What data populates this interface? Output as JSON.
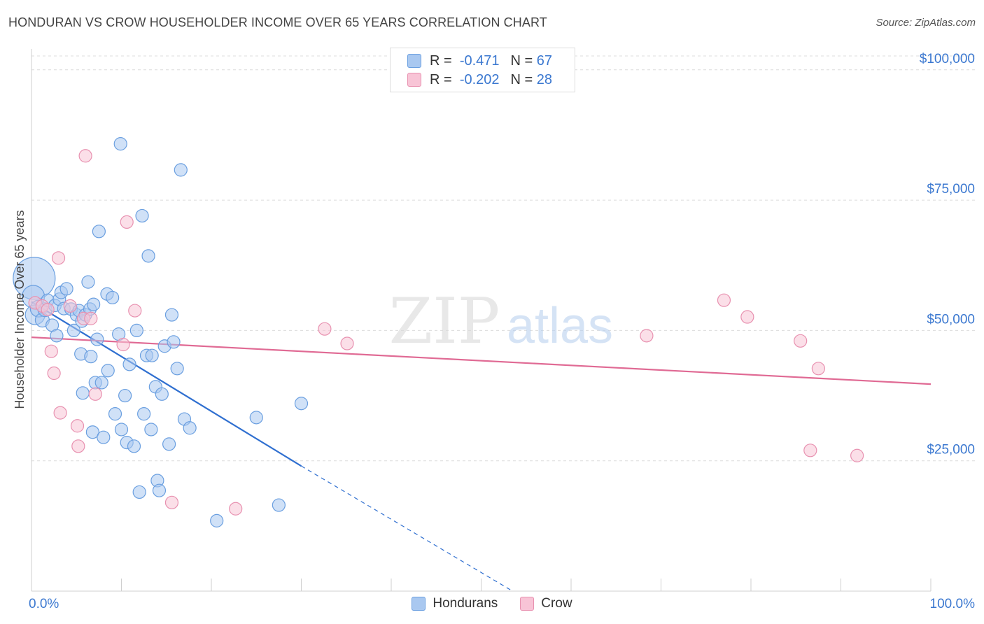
{
  "title": "HONDURAN VS CROW HOUSEHOLDER INCOME OVER 65 YEARS CORRELATION CHART",
  "source": "Source: ZipAtlas.com",
  "watermark": {
    "zip": "ZIP",
    "atlas": "atlas"
  },
  "legend": {
    "rows": [
      {
        "r_label": "R =",
        "r_value": "-0.471",
        "n_label": "N =",
        "n_value": "67",
        "color": "#a9c8f0",
        "border": "#6a9fe0"
      },
      {
        "r_label": "R =",
        "r_value": "-0.202",
        "n_label": "N =",
        "n_value": "28",
        "color": "#f8c4d6",
        "border": "#e891b0"
      }
    ]
  },
  "bottom_legend": [
    {
      "label": "Hondurans",
      "color": "#a9c8f0",
      "border": "#6a9fe0"
    },
    {
      "label": "Crow",
      "color": "#f8c4d6",
      "border": "#e891b0"
    }
  ],
  "chart_data": {
    "type": "scatter",
    "title": "HONDURAN VS CROW HOUSEHOLDER INCOME OVER 65 YEARS CORRELATION CHART",
    "xlabel": "",
    "ylabel": "Householder Income Over 65 years",
    "xlim": [
      0,
      100
    ],
    "ylim": [
      0,
      104000
    ],
    "x_tick_labels": [
      {
        "value": 0,
        "label": "0.0%"
      },
      {
        "value": 100,
        "label": "100.0%"
      }
    ],
    "x_minor_ticks": [
      0,
      10,
      20,
      30,
      40,
      50,
      60,
      70,
      80,
      90,
      100
    ],
    "y_ticks": [
      {
        "value": 25000,
        "label": "$25,000"
      },
      {
        "value": 50000,
        "label": "$50,000"
      },
      {
        "value": 75000,
        "label": "$75,000"
      },
      {
        "value": 100000,
        "label": "$100,000"
      }
    ],
    "grid": true,
    "series": [
      {
        "name": "Hondurans",
        "color": "#6a9fe0",
        "fill": "#a9c8f0",
        "trend": {
          "x0": 0.0,
          "y0": 55500,
          "x1": 30.0,
          "y1": 24000,
          "dash_to_x": 53.5,
          "dash_to_y": 0
        },
        "points": [
          [
            0.3,
            60000,
            30
          ],
          [
            0.2,
            56500,
            16
          ],
          [
            0.4,
            53000,
            14
          ],
          [
            0.8,
            54200,
            12
          ],
          [
            1.2,
            52000,
            10
          ],
          [
            1.5,
            54000,
            10
          ],
          [
            1.8,
            55800,
            9
          ],
          [
            2.3,
            51000,
            9
          ],
          [
            2.6,
            54800,
            9
          ],
          [
            2.8,
            49000,
            9
          ],
          [
            3.1,
            56000,
            9
          ],
          [
            3.3,
            57300,
            9
          ],
          [
            3.6,
            54200,
            9
          ],
          [
            3.9,
            58000,
            9
          ],
          [
            4.4,
            54100,
            9
          ],
          [
            4.7,
            50000,
            9
          ],
          [
            5.0,
            53000,
            9
          ],
          [
            5.3,
            53800,
            9
          ],
          [
            5.6,
            51800,
            9
          ],
          [
            5.5,
            45500,
            9
          ],
          [
            5.7,
            38000,
            9
          ],
          [
            6.0,
            53000,
            9
          ],
          [
            6.3,
            59300,
            9
          ],
          [
            6.5,
            54100,
            9
          ],
          [
            6.6,
            45000,
            9
          ],
          [
            6.8,
            30500,
            9
          ],
          [
            7.1,
            40000,
            9
          ],
          [
            7.3,
            48300,
            9
          ],
          [
            7.5,
            69000,
            9
          ],
          [
            7.8,
            40000,
            9
          ],
          [
            8.0,
            29500,
            9
          ],
          [
            8.4,
            57000,
            9
          ],
          [
            8.5,
            42300,
            9
          ],
          [
            9.0,
            56300,
            9
          ],
          [
            9.3,
            34000,
            9
          ],
          [
            9.7,
            49300,
            9
          ],
          [
            9.9,
            85800,
            9
          ],
          [
            10.0,
            31000,
            9
          ],
          [
            10.4,
            37500,
            9
          ],
          [
            10.6,
            28500,
            9
          ],
          [
            10.9,
            43500,
            9
          ],
          [
            11.4,
            27800,
            9
          ],
          [
            11.7,
            50000,
            9
          ],
          [
            12.0,
            19000,
            9
          ],
          [
            12.3,
            72000,
            9
          ],
          [
            12.5,
            34000,
            9
          ],
          [
            12.8,
            45200,
            9
          ],
          [
            13.0,
            64300,
            9
          ],
          [
            13.3,
            31000,
            9
          ],
          [
            13.4,
            45200,
            9
          ],
          [
            13.8,
            39200,
            9
          ],
          [
            14.0,
            21200,
            9
          ],
          [
            14.2,
            19300,
            9
          ],
          [
            14.5,
            37800,
            9
          ],
          [
            14.8,
            47000,
            9
          ],
          [
            15.3,
            28200,
            9
          ],
          [
            15.6,
            53000,
            9
          ],
          [
            15.8,
            47800,
            9
          ],
          [
            16.2,
            42700,
            9
          ],
          [
            16.6,
            80800,
            9
          ],
          [
            17.0,
            33000,
            9
          ],
          [
            17.6,
            31300,
            9
          ],
          [
            20.6,
            13500,
            9
          ],
          [
            25.0,
            33300,
            9
          ],
          [
            27.5,
            16500,
            9
          ],
          [
            30.0,
            36000,
            9
          ],
          [
            6.9,
            55000,
            9
          ]
        ]
      },
      {
        "name": "Crow",
        "color": "#e891b0",
        "fill": "#f8c4d6",
        "trend": {
          "x0": 0.0,
          "y0": 48700,
          "x1": 100.0,
          "y1": 39700
        },
        "points": [
          [
            0.4,
            55300,
            9
          ],
          [
            1.2,
            54700,
            9
          ],
          [
            1.8,
            54000,
            9
          ],
          [
            2.2,
            46000,
            9
          ],
          [
            2.5,
            41800,
            9
          ],
          [
            3.0,
            63900,
            9
          ],
          [
            3.2,
            34200,
            9
          ],
          [
            4.3,
            54700,
            9
          ],
          [
            5.1,
            31700,
            9
          ],
          [
            5.2,
            27800,
            9
          ],
          [
            5.8,
            52300,
            9
          ],
          [
            6.0,
            83500,
            9
          ],
          [
            6.6,
            52300,
            9
          ],
          [
            7.1,
            37800,
            9
          ],
          [
            10.2,
            47300,
            9
          ],
          [
            10.6,
            70800,
            9
          ],
          [
            11.5,
            53800,
            9
          ],
          [
            15.6,
            17000,
            9
          ],
          [
            22.7,
            15800,
            9
          ],
          [
            32.6,
            50300,
            9
          ],
          [
            35.1,
            47500,
            9
          ],
          [
            68.4,
            49000,
            9
          ],
          [
            77.0,
            55800,
            9
          ],
          [
            79.6,
            52600,
            9
          ],
          [
            85.5,
            48000,
            9
          ],
          [
            87.5,
            42700,
            9
          ],
          [
            86.6,
            27000,
            9
          ],
          [
            91.8,
            26000,
            9
          ]
        ]
      }
    ]
  }
}
